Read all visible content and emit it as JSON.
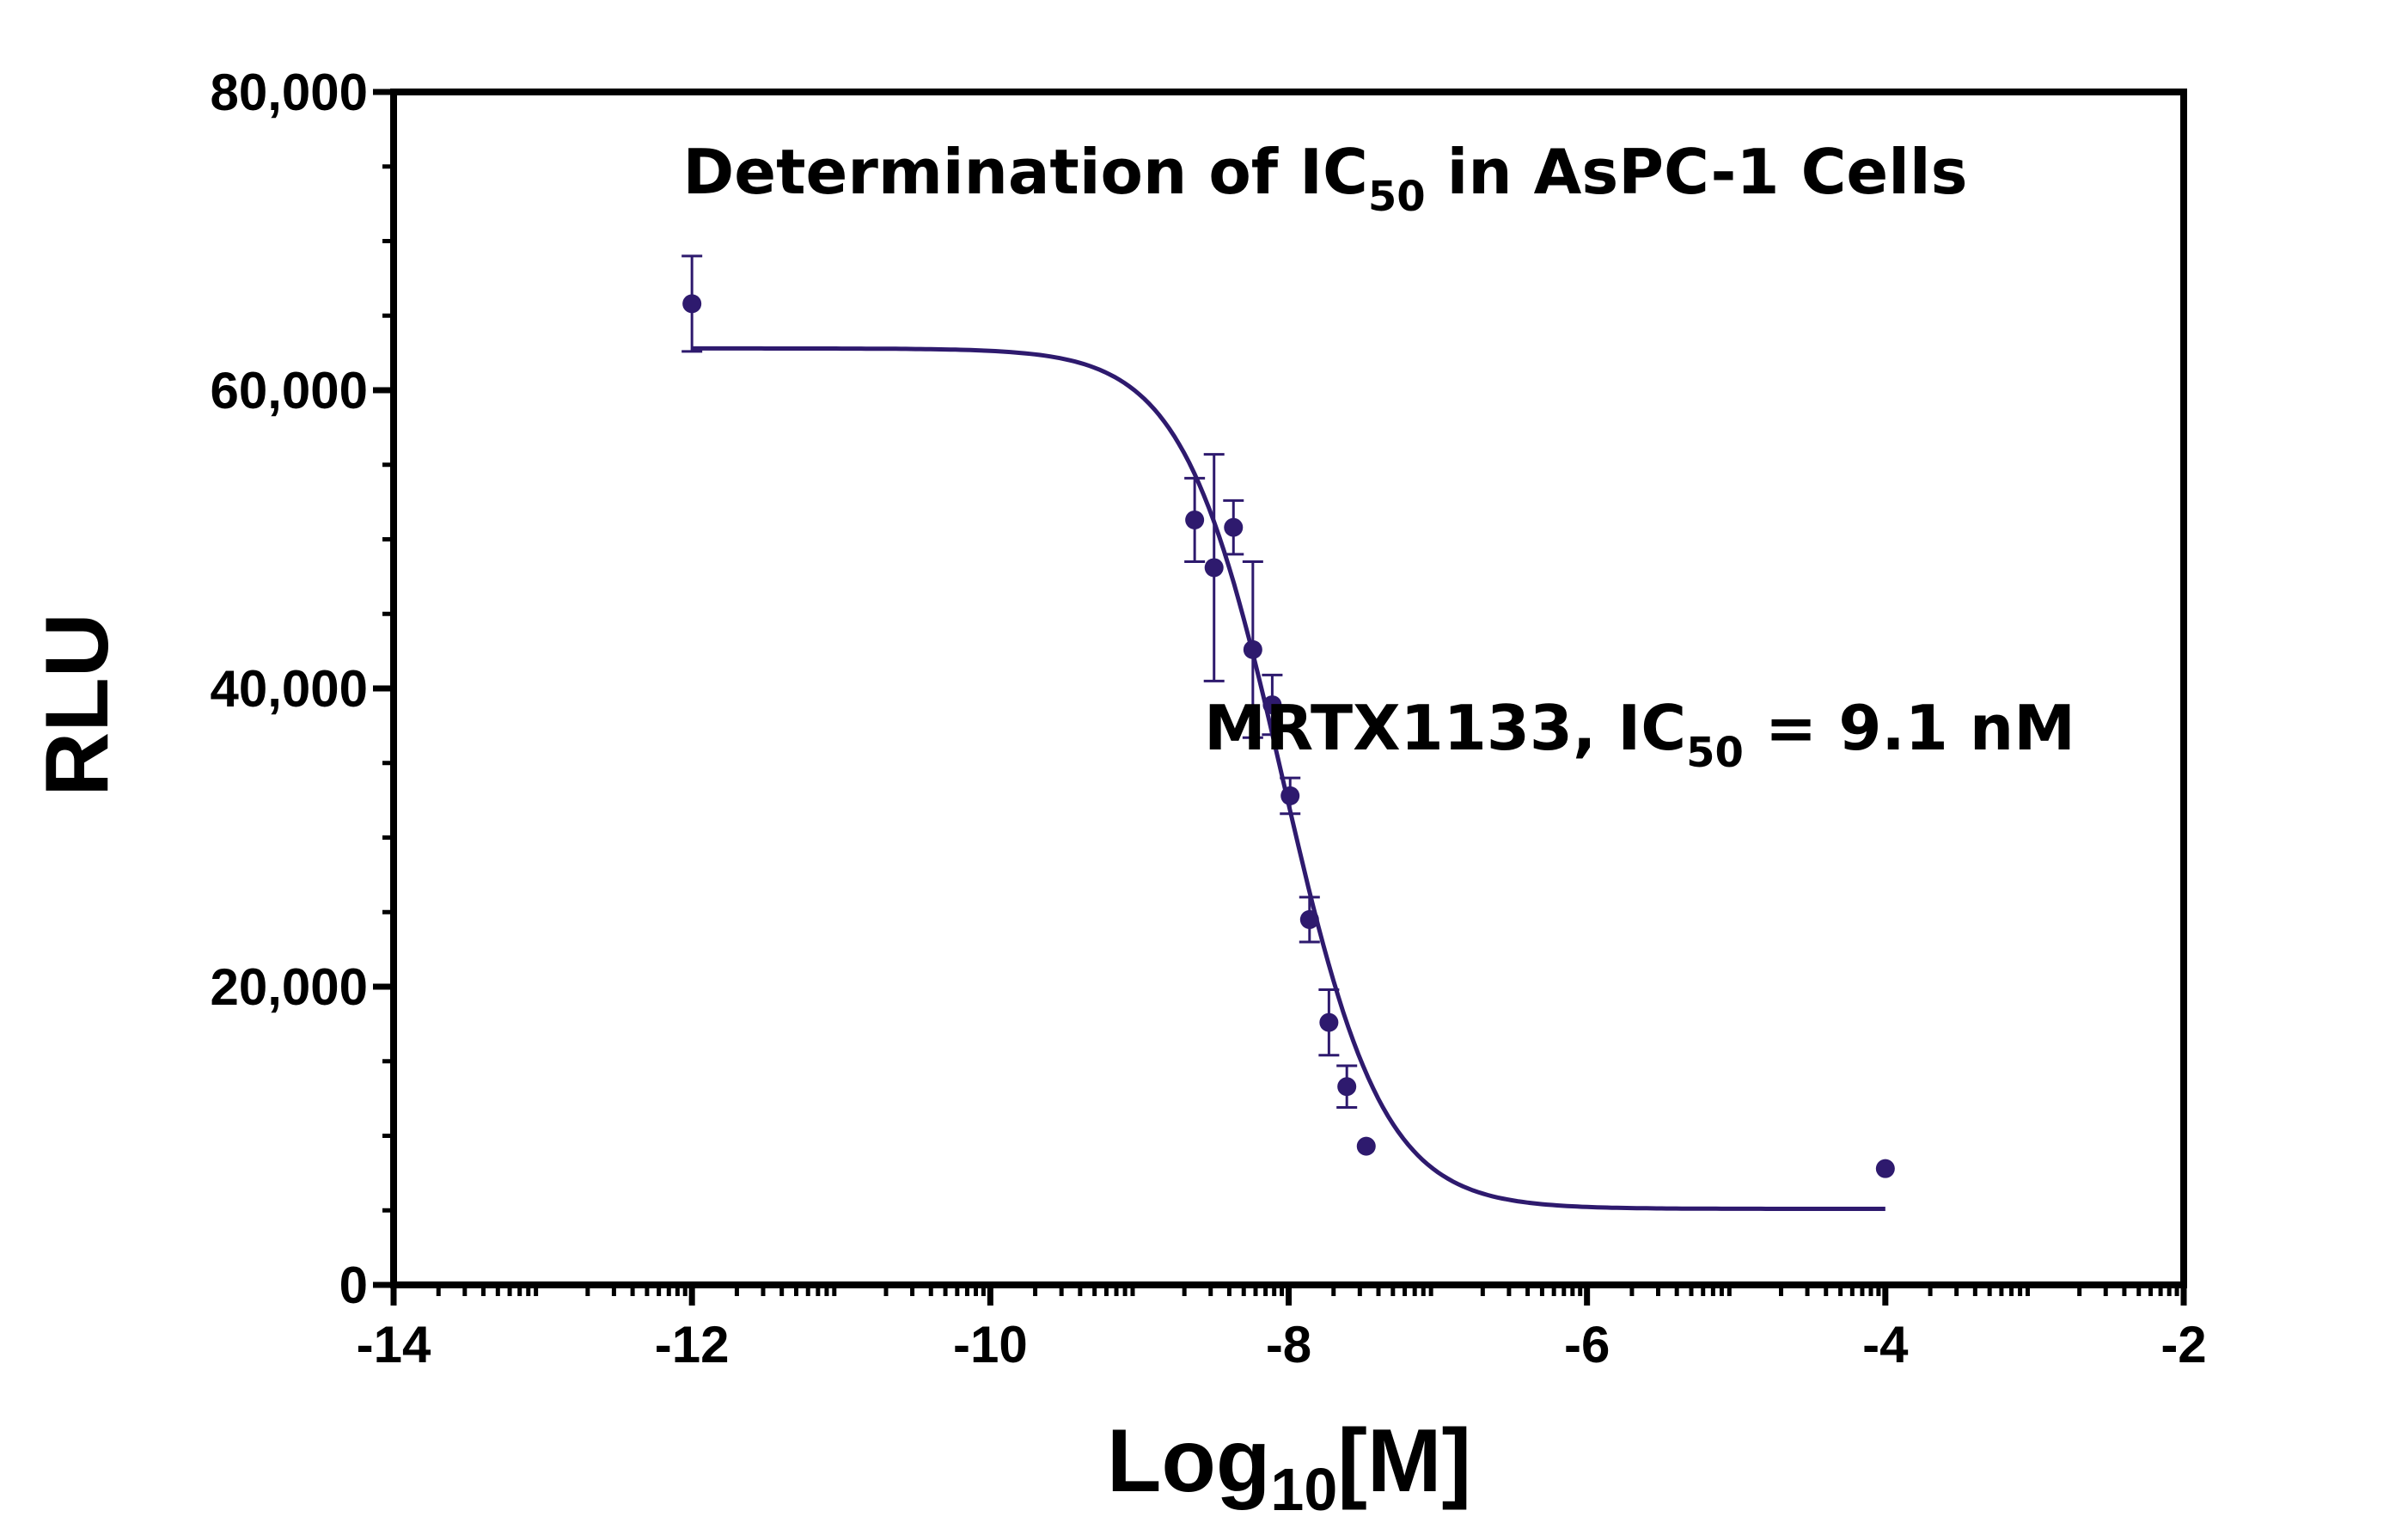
{
  "chart_data": {
    "type": "scatter",
    "title": "Determination of IC",
    "title_subscript": "50",
    "title_suffix": " in AsPC-1 Cells",
    "xlabel": "Log",
    "xlabel_subscript": "10",
    "xlabel_suffix": "[M]",
    "ylabel": "RLU",
    "xlim": [
      -14,
      -2
    ],
    "ylim": [
      0,
      80000
    ],
    "x_ticks": [
      -14,
      -12,
      -10,
      -8,
      -6,
      -4,
      -2
    ],
    "x_tick_labels": [
      "-14",
      "-12",
      "-10",
      "-8",
      "-6",
      "-4",
      "-2"
    ],
    "y_ticks": [
      0,
      20000,
      40000,
      60000,
      80000
    ],
    "y_tick_labels": [
      "0",
      "20,000",
      "40,000",
      "60,000",
      "80,000"
    ],
    "grid": false,
    "legend": "none",
    "color": "#2e1a6e",
    "annotation": {
      "text": "MRTX1133, IC",
      "subscript": "50",
      "suffix": " = 9.1 nM"
    },
    "series": [
      {
        "points": [
          {
            "x": -12.0,
            "y": 65800,
            "err": 3200
          },
          {
            "x": -8.63,
            "y": 51300,
            "err": 2800
          },
          {
            "x": -8.5,
            "y": 48100,
            "err": 7600
          },
          {
            "x": -8.37,
            "y": 50800,
            "err": 1800
          },
          {
            "x": -8.24,
            "y": 42600,
            "err": 5900
          },
          {
            "x": -8.11,
            "y": 38900,
            "err": 2000
          },
          {
            "x": -7.99,
            "y": 32800,
            "err": 1200
          },
          {
            "x": -7.86,
            "y": 24500,
            "err": 1500
          },
          {
            "x": -7.73,
            "y": 17600,
            "err": 2200
          },
          {
            "x": -7.61,
            "y": 13300,
            "err": 1400
          },
          {
            "x": -7.48,
            "y": 9300,
            "err": 0
          },
          {
            "x": -4.0,
            "y": 7800,
            "err": 0
          }
        ]
      }
    ],
    "fit": {
      "model": "4PL",
      "top": 62800,
      "bottom": 5100,
      "log_ic50": -8.04,
      "hill_slope": -1.3,
      "x_range": [
        -12,
        -4
      ]
    }
  }
}
